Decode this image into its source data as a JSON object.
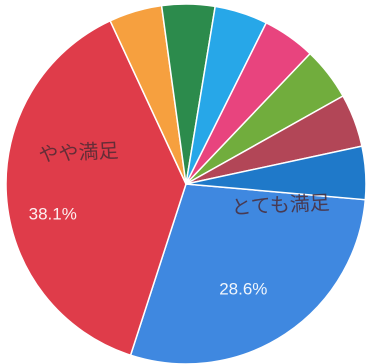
{
  "chart_data": {
    "type": "pie",
    "title": "",
    "slices": [
      {
        "label": "",
        "value": 28.6,
        "value_label": "28.6%",
        "annotation": "とても満足",
        "color": "#3f88e0"
      },
      {
        "label": "",
        "value": 38.1,
        "value_label": "38.1%",
        "annotation": "やや満足",
        "color": "#df3c4a"
      },
      {
        "label": "",
        "value": 4.76,
        "value_label": "",
        "annotation": "",
        "color": "#f6a03f"
      },
      {
        "label": "",
        "value": 4.76,
        "value_label": "",
        "annotation": "",
        "color": "#2c8b4c"
      },
      {
        "label": "",
        "value": 4.76,
        "value_label": "",
        "annotation": "",
        "color": "#27a7e8"
      },
      {
        "label": "",
        "value": 4.76,
        "value_label": "",
        "annotation": "",
        "color": "#e8447e"
      },
      {
        "label": "",
        "value": 4.76,
        "value_label": "",
        "annotation": "",
        "color": "#71ad3d"
      },
      {
        "label": "",
        "value": 4.76,
        "value_label": "",
        "annotation": "",
        "color": "#b24657"
      },
      {
        "label": "",
        "value": 4.76,
        "value_label": "",
        "annotation": "",
        "color": "#1f79c9"
      }
    ],
    "legend": "none"
  }
}
